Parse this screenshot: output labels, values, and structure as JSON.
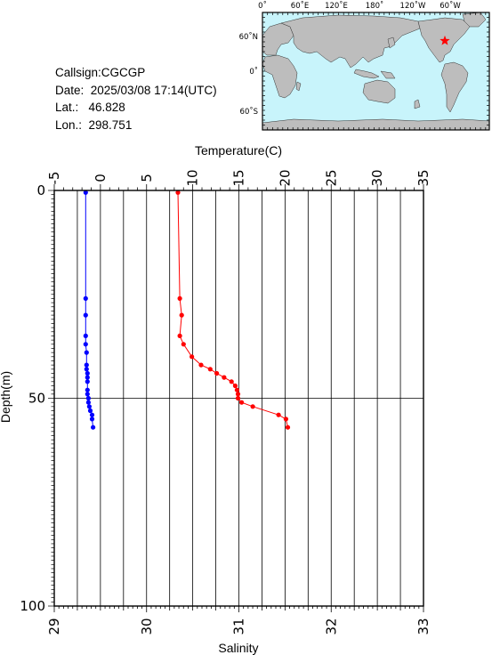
{
  "info": {
    "callsign": "Callsign:CGCGP",
    "date": "Date:  2025/03/08 17:14(UTC)",
    "lat": "Lat.:   46.828",
    "lon": "Lon.:  298.751"
  },
  "map": {
    "top_labels": [
      "0˚",
      "60˚E",
      "120˚E",
      "180˚",
      "120˚W",
      "60˚W"
    ],
    "left_labels": [
      "60˚N",
      "0˚",
      "60˚S"
    ],
    "ocean_color": "#c8f4fb",
    "land_color": "#bdbdbd",
    "marker_color": "#ff0000",
    "marker_icon": "star-icon",
    "station": {
      "lat": 46.828,
      "lon": 298.751
    }
  },
  "chart_data": {
    "type": "line",
    "xlabel_top": "Temperature(C)",
    "xlabel_bottom": "Salinity",
    "ylabel": "Depth(m)",
    "temperature_axis": {
      "min": -5,
      "max": 35,
      "ticks": [
        "-5",
        "0",
        "5",
        "10",
        "15",
        "20",
        "25",
        "30",
        "35"
      ]
    },
    "salinity_axis": {
      "min": 29,
      "max": 33,
      "ticks": [
        "29",
        "30",
        "31",
        "32",
        "33"
      ]
    },
    "depth_axis": {
      "min": 0,
      "max": 100,
      "inverted": true,
      "ticks": [
        "0",
        "50",
        "100"
      ]
    },
    "grid": true,
    "series": [
      {
        "axis": "salinity",
        "color": "#0000ff",
        "points": [
          {
            "x": 29.34,
            "depth": 0.5
          },
          {
            "x": 29.34,
            "depth": 26
          },
          {
            "x": 29.34,
            "depth": 30
          },
          {
            "x": 29.34,
            "depth": 35
          },
          {
            "x": 29.34,
            "depth": 37
          },
          {
            "x": 29.35,
            "depth": 39
          },
          {
            "x": 29.35,
            "depth": 42
          },
          {
            "x": 29.35,
            "depth": 43
          },
          {
            "x": 29.36,
            "depth": 44
          },
          {
            "x": 29.36,
            "depth": 45
          },
          {
            "x": 29.36,
            "depth": 46
          },
          {
            "x": 29.36,
            "depth": 48
          },
          {
            "x": 29.36,
            "depth": 49
          },
          {
            "x": 29.37,
            "depth": 50
          },
          {
            "x": 29.37,
            "depth": 51
          },
          {
            "x": 29.38,
            "depth": 52
          },
          {
            "x": 29.39,
            "depth": 53
          },
          {
            "x": 29.41,
            "depth": 54
          },
          {
            "x": 29.41,
            "depth": 55
          },
          {
            "x": 29.42,
            "depth": 57
          }
        ]
      },
      {
        "axis": "temperature",
        "color": "#ff0000",
        "points": [
          {
            "x": 8.4,
            "depth": 0.5
          },
          {
            "x": 8.6,
            "depth": 26
          },
          {
            "x": 8.8,
            "depth": 30
          },
          {
            "x": 8.6,
            "depth": 35
          },
          {
            "x": 9.0,
            "depth": 37
          },
          {
            "x": 9.9,
            "depth": 40
          },
          {
            "x": 10.9,
            "depth": 42
          },
          {
            "x": 11.9,
            "depth": 43
          },
          {
            "x": 12.6,
            "depth": 44
          },
          {
            "x": 13.4,
            "depth": 45
          },
          {
            "x": 14.2,
            "depth": 46
          },
          {
            "x": 14.6,
            "depth": 47
          },
          {
            "x": 14.8,
            "depth": 48
          },
          {
            "x": 14.9,
            "depth": 49
          },
          {
            "x": 14.9,
            "depth": 50
          },
          {
            "x": 15.3,
            "depth": 51
          },
          {
            "x": 16.5,
            "depth": 52
          },
          {
            "x": 19.3,
            "depth": 54
          },
          {
            "x": 20.1,
            "depth": 55
          },
          {
            "x": 20.3,
            "depth": 57
          }
        ]
      }
    ]
  }
}
